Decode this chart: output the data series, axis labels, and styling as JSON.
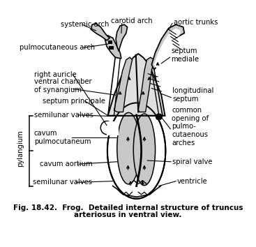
{
  "bg_color": "#ffffff",
  "caption_line1": "Fig. 18.42.  Frog.  Detailed internal structure of truncus",
  "caption_line2": "arteriosus in ventral view.",
  "labels": {
    "systemic_arch": "systemic arch",
    "carotid_arch": "carotid arch",
    "aortic_trunks": "aortic trunks",
    "pulmocutaneous_arch": "pulmocutaneous arch",
    "septum_mediale": "septum\nmediale",
    "right_auricle": "right auricle",
    "ventral_chamber": "ventral chamber\nof synangium",
    "septum_principale": "septum principale",
    "semilunar_valves_top": "semilunar valves",
    "longitudinal_septum": "longitudinal\nseptum",
    "common_opening": "common\nopening of\npulmo-\ncutaenous\narches",
    "cavum_pulmocutaneum": "cavum\npulmocutaneum",
    "cavum_aortium": "cavum aortium",
    "spiral_valve": "spiral valve",
    "semilunar_valves_bot": "semilunar valves",
    "ventricle": "ventricle",
    "pylangium": "pylangium"
  }
}
